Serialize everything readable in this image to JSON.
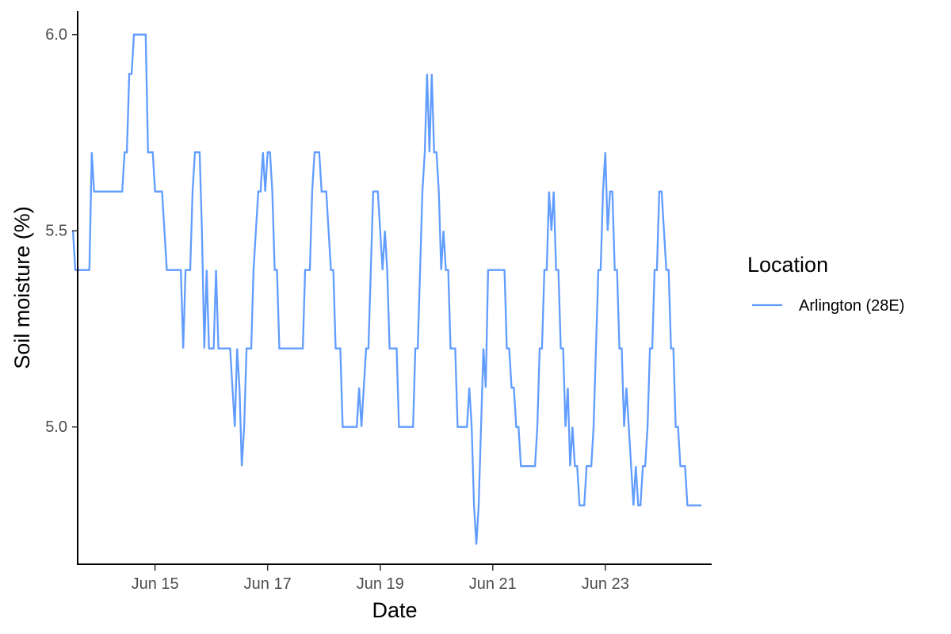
{
  "chart_data": {
    "type": "line",
    "xlabel": "Date",
    "ylabel": "Soil moisture (%)",
    "legend": {
      "title": "Location",
      "placement": "right"
    },
    "x_ticks": [
      "Jun 15",
      "Jun 17",
      "Jun 19",
      "Jun 21",
      "Jun 23"
    ],
    "y_ticks": [
      "5.0",
      "5.5",
      "6.0"
    ],
    "xlim": [
      "2024-06-13 15:00",
      "2024-06-24 21:00"
    ],
    "ylim": [
      4.65,
      6.06
    ],
    "grid": false,
    "series": [
      {
        "name": "Arlington (28E)",
        "color": "#619CFF",
        "step": true,
        "points": [
          [
            "2024-06-13 13:00",
            5.5
          ],
          [
            "2024-06-13 14:00",
            5.4
          ],
          [
            "2024-06-13 21:00",
            5.7
          ],
          [
            "2024-06-13 22:00",
            5.6
          ],
          [
            "2024-06-14 10:00",
            5.6
          ],
          [
            "2024-06-14 11:00",
            5.7
          ],
          [
            "2024-06-14 13:00",
            5.9
          ],
          [
            "2024-06-14 15:00",
            6.0
          ],
          [
            "2024-06-14 20:00",
            6.0
          ],
          [
            "2024-06-14 21:00",
            5.7
          ],
          [
            "2024-06-15 00:00",
            5.6
          ],
          [
            "2024-06-15 04:00",
            5.5
          ],
          [
            "2024-06-15 05:00",
            5.4
          ],
          [
            "2024-06-15 12:00",
            5.2
          ],
          [
            "2024-06-15 13:00",
            5.4
          ],
          [
            "2024-06-15 16:00",
            5.6
          ],
          [
            "2024-06-15 17:00",
            5.7
          ],
          [
            "2024-06-15 20:00",
            5.5
          ],
          [
            "2024-06-15 21:00",
            5.2
          ],
          [
            "2024-06-15 22:00",
            5.4
          ],
          [
            "2024-06-15 23:00",
            5.2
          ],
          [
            "2024-06-16 02:00",
            5.4
          ],
          [
            "2024-06-16 03:00",
            5.2
          ],
          [
            "2024-06-16 09:00",
            5.1
          ],
          [
            "2024-06-16 10:00",
            5.0
          ],
          [
            "2024-06-16 11:00",
            5.2
          ],
          [
            "2024-06-16 12:00",
            5.1
          ],
          [
            "2024-06-16 13:00",
            4.9
          ],
          [
            "2024-06-16 14:00",
            5.0
          ],
          [
            "2024-06-16 15:00",
            5.2
          ],
          [
            "2024-06-16 18:00",
            5.4
          ],
          [
            "2024-06-16 19:00",
            5.5
          ],
          [
            "2024-06-16 20:00",
            5.6
          ],
          [
            "2024-06-16 22:00",
            5.7
          ],
          [
            "2024-06-16 23:00",
            5.6
          ],
          [
            "2024-06-17 00:00",
            5.7
          ],
          [
            "2024-06-17 02:00",
            5.6
          ],
          [
            "2024-06-17 03:00",
            5.4
          ],
          [
            "2024-06-17 05:00",
            5.2
          ],
          [
            "2024-06-17 16:00",
            5.4
          ],
          [
            "2024-06-17 19:00",
            5.6
          ],
          [
            "2024-06-17 20:00",
            5.7
          ],
          [
            "2024-06-17 23:00",
            5.6
          ],
          [
            "2024-06-18 02:00",
            5.5
          ],
          [
            "2024-06-18 03:00",
            5.4
          ],
          [
            "2024-06-18 05:00",
            5.2
          ],
          [
            "2024-06-18 08:00",
            5.0
          ],
          [
            "2024-06-18 15:00",
            5.1
          ],
          [
            "2024-06-18 16:00",
            5.0
          ],
          [
            "2024-06-18 17:00",
            5.1
          ],
          [
            "2024-06-18 18:00",
            5.2
          ],
          [
            "2024-06-18 20:00",
            5.4
          ],
          [
            "2024-06-18 21:00",
            5.6
          ],
          [
            "2024-06-19 00:00",
            5.5
          ],
          [
            "2024-06-19 01:00",
            5.4
          ],
          [
            "2024-06-19 02:00",
            5.5
          ],
          [
            "2024-06-19 03:00",
            5.4
          ],
          [
            "2024-06-19 04:00",
            5.2
          ],
          [
            "2024-06-19 08:00",
            5.0
          ],
          [
            "2024-06-19 15:00",
            5.2
          ],
          [
            "2024-06-19 17:00",
            5.4
          ],
          [
            "2024-06-19 18:00",
            5.6
          ],
          [
            "2024-06-19 19:00",
            5.7
          ],
          [
            "2024-06-19 20:00",
            5.9
          ],
          [
            "2024-06-19 21:00",
            5.7
          ],
          [
            "2024-06-19 22:00",
            5.9
          ],
          [
            "2024-06-19 23:00",
            5.7
          ],
          [
            "2024-06-20 01:00",
            5.6
          ],
          [
            "2024-06-20 02:00",
            5.4
          ],
          [
            "2024-06-20 03:00",
            5.5
          ],
          [
            "2024-06-20 04:00",
            5.4
          ],
          [
            "2024-06-20 06:00",
            5.2
          ],
          [
            "2024-06-20 09:00",
            5.0
          ],
          [
            "2024-06-20 14:00",
            5.1
          ],
          [
            "2024-06-20 15:00",
            5.0
          ],
          [
            "2024-06-20 16:00",
            4.8
          ],
          [
            "2024-06-20 17:00",
            4.7
          ],
          [
            "2024-06-20 18:00",
            4.8
          ],
          [
            "2024-06-20 19:00",
            5.0
          ],
          [
            "2024-06-20 20:00",
            5.2
          ],
          [
            "2024-06-20 21:00",
            5.1
          ],
          [
            "2024-06-20 22:00",
            5.4
          ],
          [
            "2024-06-21 06:00",
            5.2
          ],
          [
            "2024-06-21 08:00",
            5.1
          ],
          [
            "2024-06-21 10:00",
            5.0
          ],
          [
            "2024-06-21 12:00",
            4.9
          ],
          [
            "2024-06-21 19:00",
            5.0
          ],
          [
            "2024-06-21 20:00",
            5.2
          ],
          [
            "2024-06-21 22:00",
            5.4
          ],
          [
            "2024-06-22 00:00",
            5.6
          ],
          [
            "2024-06-22 01:00",
            5.5
          ],
          [
            "2024-06-22 02:00",
            5.6
          ],
          [
            "2024-06-22 03:00",
            5.4
          ],
          [
            "2024-06-22 05:00",
            5.2
          ],
          [
            "2024-06-22 07:00",
            5.0
          ],
          [
            "2024-06-22 08:00",
            5.1
          ],
          [
            "2024-06-22 09:00",
            4.9
          ],
          [
            "2024-06-22 10:00",
            5.0
          ],
          [
            "2024-06-22 11:00",
            4.9
          ],
          [
            "2024-06-22 13:00",
            4.8
          ],
          [
            "2024-06-22 16:00",
            4.9
          ],
          [
            "2024-06-22 19:00",
            5.0
          ],
          [
            "2024-06-22 20:00",
            5.2
          ],
          [
            "2024-06-22 21:00",
            5.4
          ],
          [
            "2024-06-22 23:00",
            5.6
          ],
          [
            "2024-06-23 00:00",
            5.7
          ],
          [
            "2024-06-23 01:00",
            5.5
          ],
          [
            "2024-06-23 02:00",
            5.6
          ],
          [
            "2024-06-23 04:00",
            5.4
          ],
          [
            "2024-06-23 06:00",
            5.2
          ],
          [
            "2024-06-23 08:00",
            5.0
          ],
          [
            "2024-06-23 09:00",
            5.1
          ],
          [
            "2024-06-23 10:00",
            5.0
          ],
          [
            "2024-06-23 11:00",
            4.9
          ],
          [
            "2024-06-23 12:00",
            4.8
          ],
          [
            "2024-06-23 13:00",
            4.9
          ],
          [
            "2024-06-23 14:00",
            4.8
          ],
          [
            "2024-06-23 16:00",
            4.9
          ],
          [
            "2024-06-23 18:00",
            5.0
          ],
          [
            "2024-06-23 19:00",
            5.2
          ],
          [
            "2024-06-23 21:00",
            5.4
          ],
          [
            "2024-06-23 23:00",
            5.6
          ],
          [
            "2024-06-24 01:00",
            5.5
          ],
          [
            "2024-06-24 02:00",
            5.4
          ],
          [
            "2024-06-24 04:00",
            5.2
          ],
          [
            "2024-06-24 06:00",
            5.0
          ],
          [
            "2024-06-24 08:00",
            4.9
          ],
          [
            "2024-06-24 11:00",
            4.8
          ],
          [
            "2024-06-24 17:00",
            4.8
          ]
        ]
      }
    ]
  }
}
